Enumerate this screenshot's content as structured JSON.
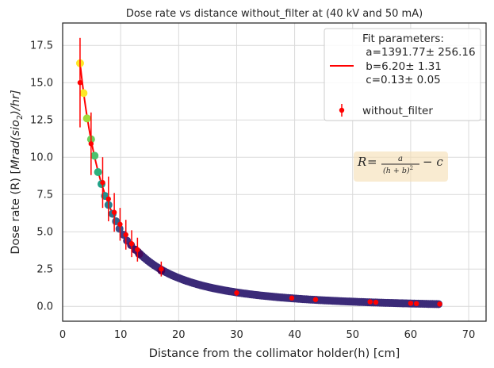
{
  "chart_data": {
    "type": "scatter",
    "title": "Dose rate vs distance without_filter at  (40 kV and 50 mA)",
    "xlabel": "Distance from the collimator holder(h) [cm]",
    "ylabel": {
      "prefix": "Dose rate (R) [",
      "math": "Mrad(sio",
      "sub": "2",
      "suffix": ")/hr]"
    },
    "xlim": [
      0,
      73
    ],
    "ylim": [
      -1.0,
      19.0
    ],
    "xticks": [
      0,
      10,
      20,
      30,
      40,
      50,
      60,
      70
    ],
    "yticks": [
      0.0,
      2.5,
      5.0,
      7.5,
      10.0,
      12.5,
      15.0,
      17.5
    ],
    "xtick_labels": [
      "0",
      "10",
      "20",
      "30",
      "40",
      "50",
      "60",
      "70"
    ],
    "ytick_labels": [
      "0.0",
      "2.5",
      "5.0",
      "7.5",
      "10.0",
      "12.5",
      "15.0",
      "17.5"
    ],
    "grid": true,
    "legend_position": "top-right",
    "legend": {
      "fit_lines": [
        "Fit parameters:",
        " a=1391.77± 256.16",
        " b=6.20± 1.31",
        " c=0.13± 0.05"
      ],
      "data_label": "without_filter"
    },
    "annotation": {
      "lhs": "R",
      "eq": "=",
      "numerator": "a",
      "denominator": "(h + b)",
      "power": "2",
      "tail": "− c"
    },
    "fit": {
      "name": "Fit parameters",
      "function": "a/(h+b)^2 - c",
      "a": 1391.77,
      "b": 6.2,
      "c": 0.13,
      "x_range": [
        3,
        65
      ],
      "color": "#ff0000"
    },
    "colored_points": {
      "x": [
        3.0,
        3.6,
        4.2,
        4.9,
        5.5,
        6.1,
        6.7,
        7.3,
        7.9,
        8.6,
        9.2,
        9.8,
        10.5,
        11.1,
        11.8,
        12.5,
        13.2,
        17.0
      ],
      "y": [
        16.3,
        14.3,
        12.6,
        11.2,
        10.1,
        9.0,
        8.2,
        7.4,
        6.8,
        6.2,
        5.7,
        5.2,
        4.8,
        4.4,
        4.1,
        3.8,
        3.5,
        2.4
      ],
      "colors": [
        "#fde725",
        "#fde725",
        "#a0da39",
        "#6ccd5a",
        "#4ac16d",
        "#2db27d",
        "#1fa187",
        "#21918c",
        "#277f8e",
        "#2c728e",
        "#33638d",
        "#3b528b",
        "#424086",
        "#472d7b",
        "#481a6c",
        "#471063",
        "#450a5c",
        "#440154"
      ]
    },
    "dense_range": [
      13,
      65
    ],
    "dense_color": "#3b2a78",
    "series": [
      {
        "name": "without_filter",
        "color": "#ff0000",
        "x": [
          3.0,
          4.9,
          6.9,
          7.9,
          8.9,
          9.9,
          10.9,
          11.9,
          12.9,
          17.0,
          30.0,
          39.5,
          43.6,
          53.0,
          54.0,
          60.0,
          61.0,
          65.0
        ],
        "y": [
          15.0,
          10.9,
          8.3,
          7.2,
          6.3,
          5.5,
          4.8,
          4.2,
          3.8,
          2.5,
          0.9,
          0.55,
          0.45,
          0.3,
          0.27,
          0.2,
          0.18,
          0.15
        ],
        "yerr": [
          3.0,
          2.1,
          1.7,
          1.5,
          1.3,
          1.1,
          1.0,
          0.9,
          0.8,
          0.5,
          0.2,
          0.12,
          0.1,
          0.07,
          0.07,
          0.05,
          0.05,
          0.04
        ]
      }
    ]
  }
}
